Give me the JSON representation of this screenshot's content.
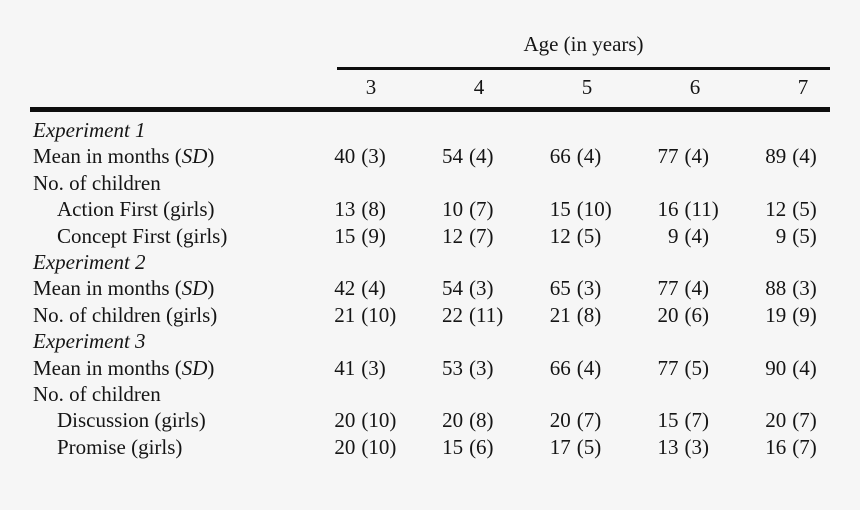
{
  "colors": {
    "background": "#f6f6f6",
    "text": "#151515",
    "rule": "#0e0e0e"
  },
  "table": {
    "spanner_label": "Age (in years)",
    "age_columns": [
      "3",
      "4",
      "5",
      "6",
      "7"
    ],
    "rows": [
      {
        "kind": "section",
        "indent": false,
        "label": "Experiment 1"
      },
      {
        "kind": "data",
        "indent": false,
        "label_pre": "Mean in months (",
        "label_italic": "SD",
        "label_post": ")",
        "cells": [
          {
            "n": "40",
            "sd": "(3)"
          },
          {
            "n": "54",
            "sd": "(4)"
          },
          {
            "n": "66",
            "sd": "(4)"
          },
          {
            "n": "77",
            "sd": "(4)"
          },
          {
            "n": "89",
            "sd": "(4)"
          }
        ]
      },
      {
        "kind": "plain",
        "indent": false,
        "label": "No. of children"
      },
      {
        "kind": "data",
        "indent": true,
        "label_pre": "Action First (girls)",
        "label_italic": "",
        "label_post": "",
        "cells": [
          {
            "n": "13",
            "sd": "(8)"
          },
          {
            "n": "10",
            "sd": "(7)"
          },
          {
            "n": "15",
            "sd": "(10)"
          },
          {
            "n": "16",
            "sd": "(11)"
          },
          {
            "n": "12",
            "sd": "(5)"
          }
        ]
      },
      {
        "kind": "data",
        "indent": true,
        "label_pre": "Concept First (girls)",
        "label_italic": "",
        "label_post": "",
        "cells": [
          {
            "n": "15",
            "sd": "(9)"
          },
          {
            "n": "12",
            "sd": "(7)"
          },
          {
            "n": "12",
            "sd": "(5)"
          },
          {
            "n": "9",
            "sd": "(4)"
          },
          {
            "n": "9",
            "sd": "(5)"
          }
        ]
      },
      {
        "kind": "section",
        "indent": false,
        "label": "Experiment 2"
      },
      {
        "kind": "data",
        "indent": false,
        "label_pre": "Mean in months (",
        "label_italic": "SD",
        "label_post": ")",
        "cells": [
          {
            "n": "42",
            "sd": "(4)"
          },
          {
            "n": "54",
            "sd": "(3)"
          },
          {
            "n": "65",
            "sd": "(3)"
          },
          {
            "n": "77",
            "sd": "(4)"
          },
          {
            "n": "88",
            "sd": "(3)"
          }
        ]
      },
      {
        "kind": "data",
        "indent": false,
        "label_pre": "No. of children (girls)",
        "label_italic": "",
        "label_post": "",
        "cells": [
          {
            "n": "21",
            "sd": "(10)"
          },
          {
            "n": "22",
            "sd": "(11)"
          },
          {
            "n": "21",
            "sd": "(8)"
          },
          {
            "n": "20",
            "sd": "(6)"
          },
          {
            "n": "19",
            "sd": "(9)"
          }
        ]
      },
      {
        "kind": "section",
        "indent": false,
        "label": "Experiment 3"
      },
      {
        "kind": "data",
        "indent": false,
        "label_pre": "Mean in months (",
        "label_italic": "SD",
        "label_post": ")",
        "cells": [
          {
            "n": "41",
            "sd": "(3)"
          },
          {
            "n": "53",
            "sd": "(3)"
          },
          {
            "n": "66",
            "sd": "(4)"
          },
          {
            "n": "77",
            "sd": "(5)"
          },
          {
            "n": "90",
            "sd": "(4)"
          }
        ]
      },
      {
        "kind": "plain",
        "indent": false,
        "label": "No. of children"
      },
      {
        "kind": "data",
        "indent": true,
        "label_pre": "Discussion (girls)",
        "label_italic": "",
        "label_post": "",
        "cells": [
          {
            "n": "20",
            "sd": "(10)"
          },
          {
            "n": "20",
            "sd": "(8)"
          },
          {
            "n": "20",
            "sd": "(7)"
          },
          {
            "n": "15",
            "sd": "(7)"
          },
          {
            "n": "20",
            "sd": "(7)"
          }
        ]
      },
      {
        "kind": "data",
        "indent": true,
        "label_pre": "Promise (girls)",
        "label_italic": "",
        "label_post": "",
        "cells": [
          {
            "n": "20",
            "sd": "(10)"
          },
          {
            "n": "15",
            "sd": "(6)"
          },
          {
            "n": "17",
            "sd": "(5)"
          },
          {
            "n": "13",
            "sd": "(3)"
          },
          {
            "n": "16",
            "sd": "(7)"
          }
        ]
      }
    ]
  }
}
